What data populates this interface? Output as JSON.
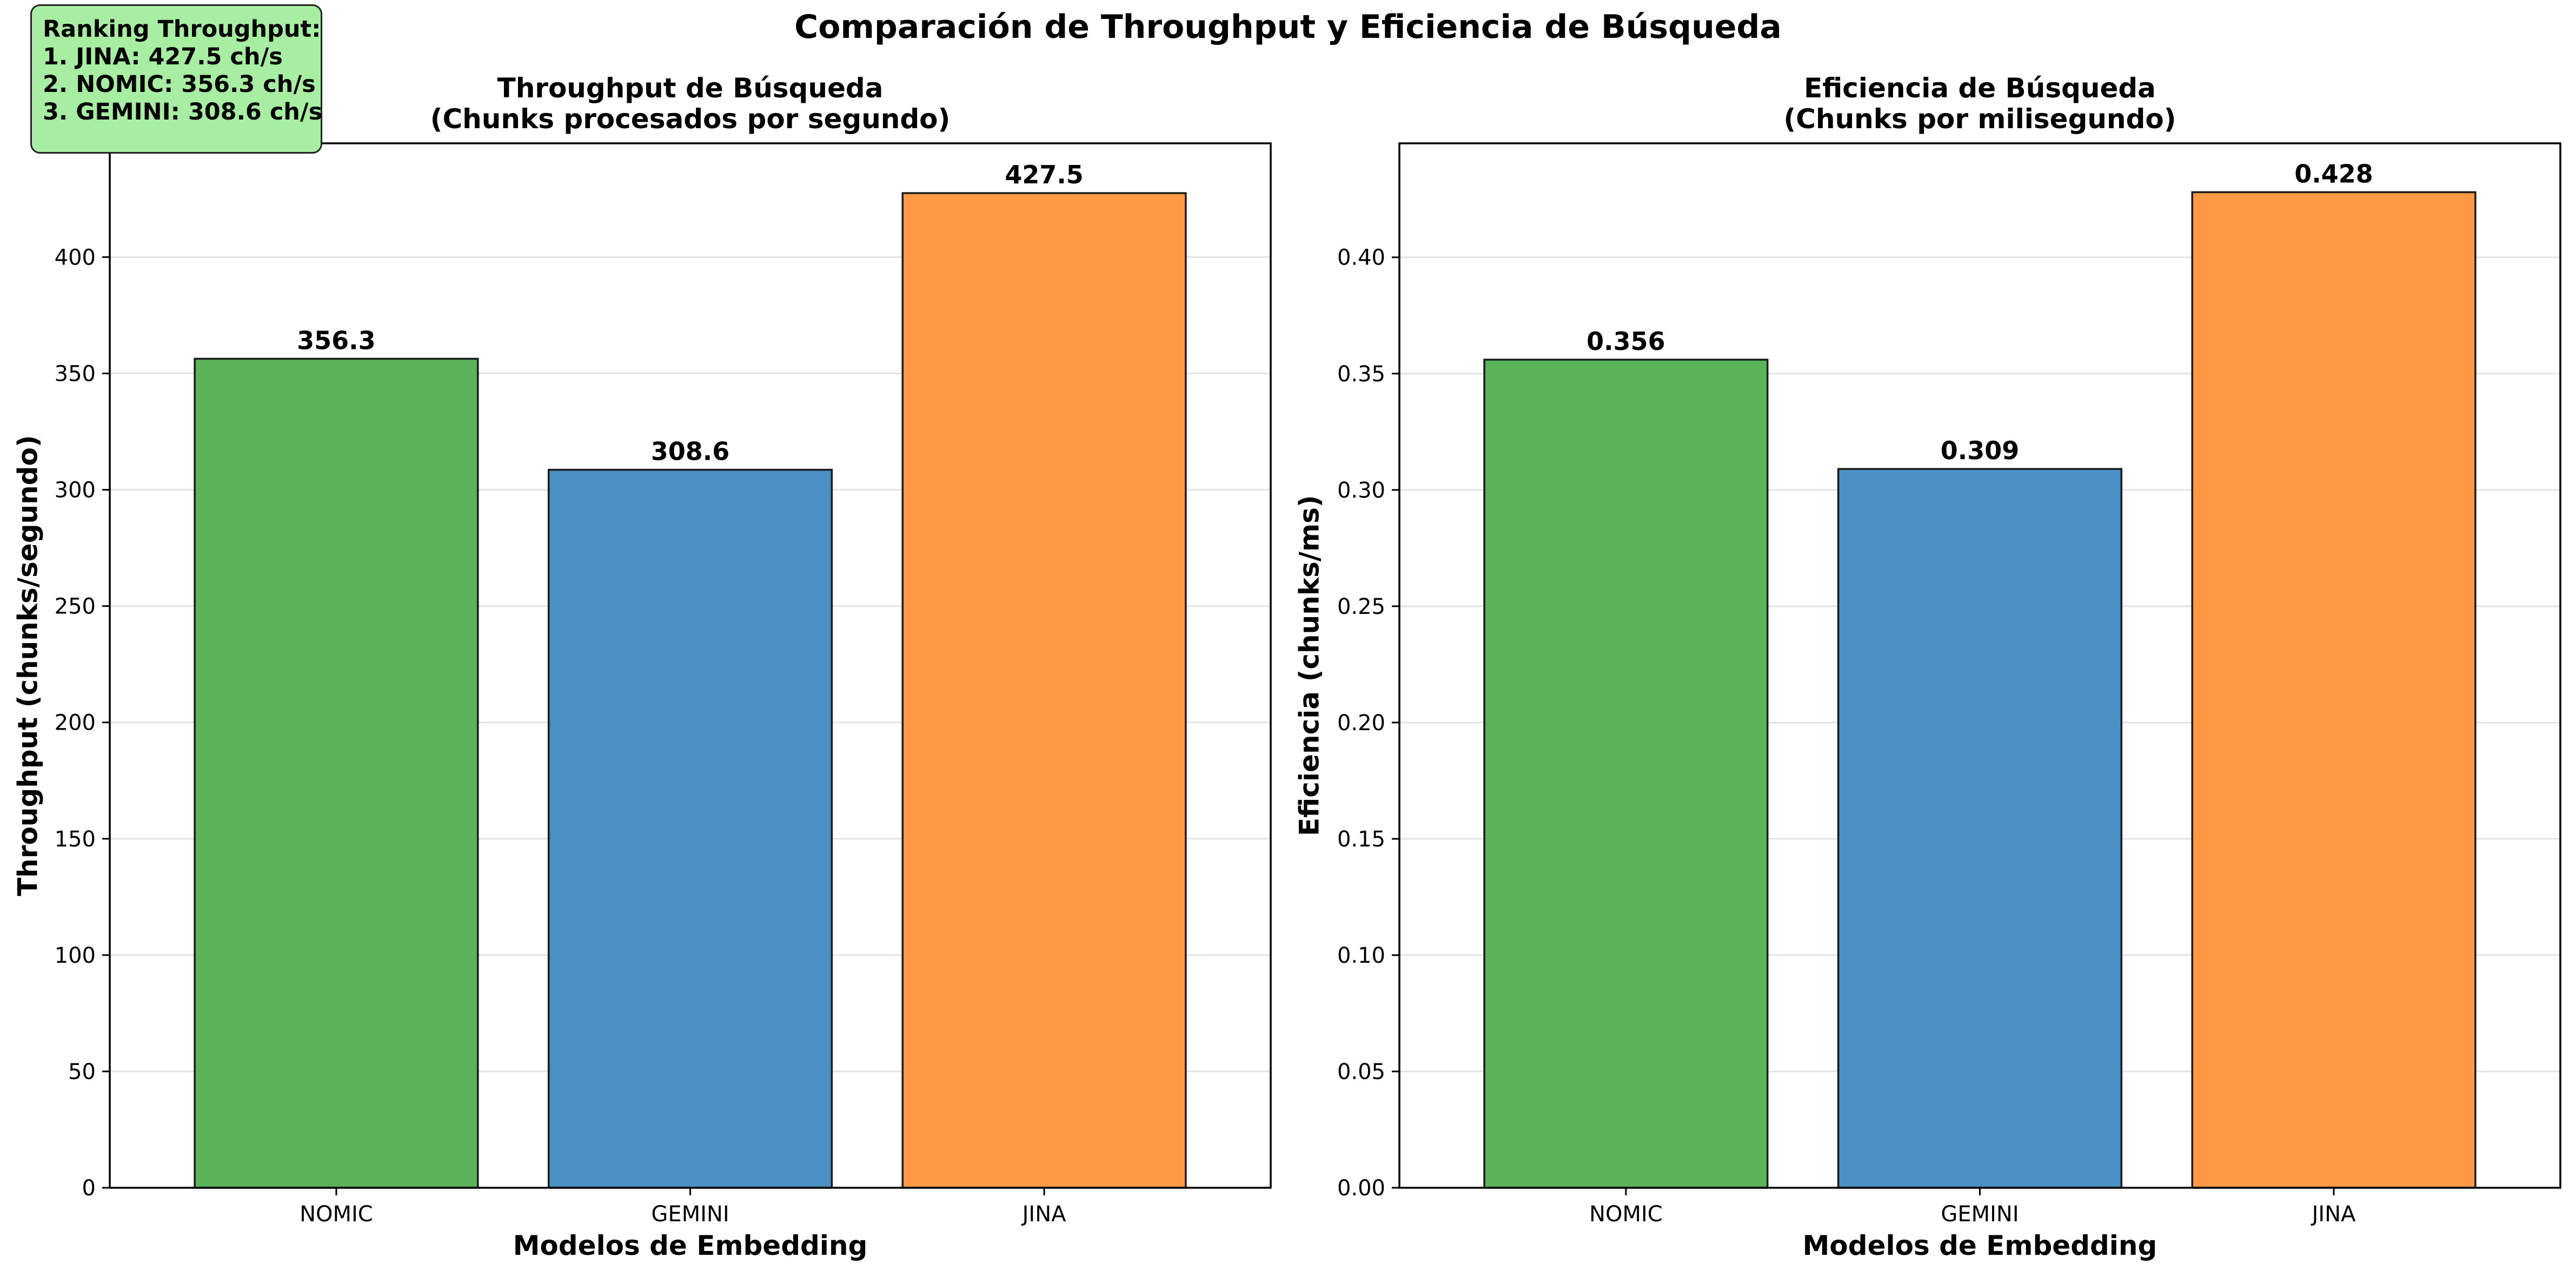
{
  "figure": {
    "suptitle": "Comparación de Throughput y Eficiencia de Búsqueda"
  },
  "ranking_box": {
    "title": "Ranking Throughput:",
    "lines": [
      "1. JINA: 427.5 ch/s",
      "2. NOMIC: 356.3 ch/s",
      "3. GEMINI: 308.6 ch/s"
    ],
    "background_color": "#a8eea2"
  },
  "chart_data": [
    {
      "type": "bar",
      "title_lines": [
        "Throughput de Búsqueda",
        "(Chunks procesados por segundo)"
      ],
      "xlabel": "Modelos de Embedding",
      "ylabel": "Throughput (chunks/segundo)",
      "categories": [
        "NOMIC",
        "GEMINI",
        "JINA"
      ],
      "values": [
        356.3,
        308.6,
        427.5
      ],
      "value_labels": [
        "356.3",
        "308.6",
        "427.5"
      ],
      "colors": [
        "#59b459",
        "#4a90c2",
        "#ff9944"
      ],
      "ylim": [
        0,
        448.9
      ],
      "yticks": [
        0,
        50,
        100,
        150,
        200,
        250,
        300,
        350,
        400
      ],
      "ytick_labels": [
        "0",
        "50",
        "100",
        "150",
        "200",
        "250",
        "300",
        "350",
        "400"
      ],
      "grid": "y"
    },
    {
      "type": "bar",
      "title_lines": [
        "Eficiencia de Búsqueda",
        "(Chunks por milisegundo)"
      ],
      "xlabel": "Modelos de Embedding",
      "ylabel": "Eficiencia (chunks/ms)",
      "categories": [
        "NOMIC",
        "GEMINI",
        "JINA"
      ],
      "values": [
        0.356,
        0.309,
        0.428
      ],
      "value_labels": [
        "0.356",
        "0.309",
        "0.428"
      ],
      "colors": [
        "#59b459",
        "#4a90c2",
        "#ff9944"
      ],
      "ylim": [
        0,
        0.449
      ],
      "yticks": [
        0,
        0.05,
        0.1,
        0.15,
        0.2,
        0.25,
        0.3,
        0.35,
        0.4
      ],
      "ytick_labels": [
        "0.00",
        "0.05",
        "0.10",
        "0.15",
        "0.20",
        "0.25",
        "0.30",
        "0.35",
        "0.40"
      ],
      "grid": "y"
    }
  ]
}
